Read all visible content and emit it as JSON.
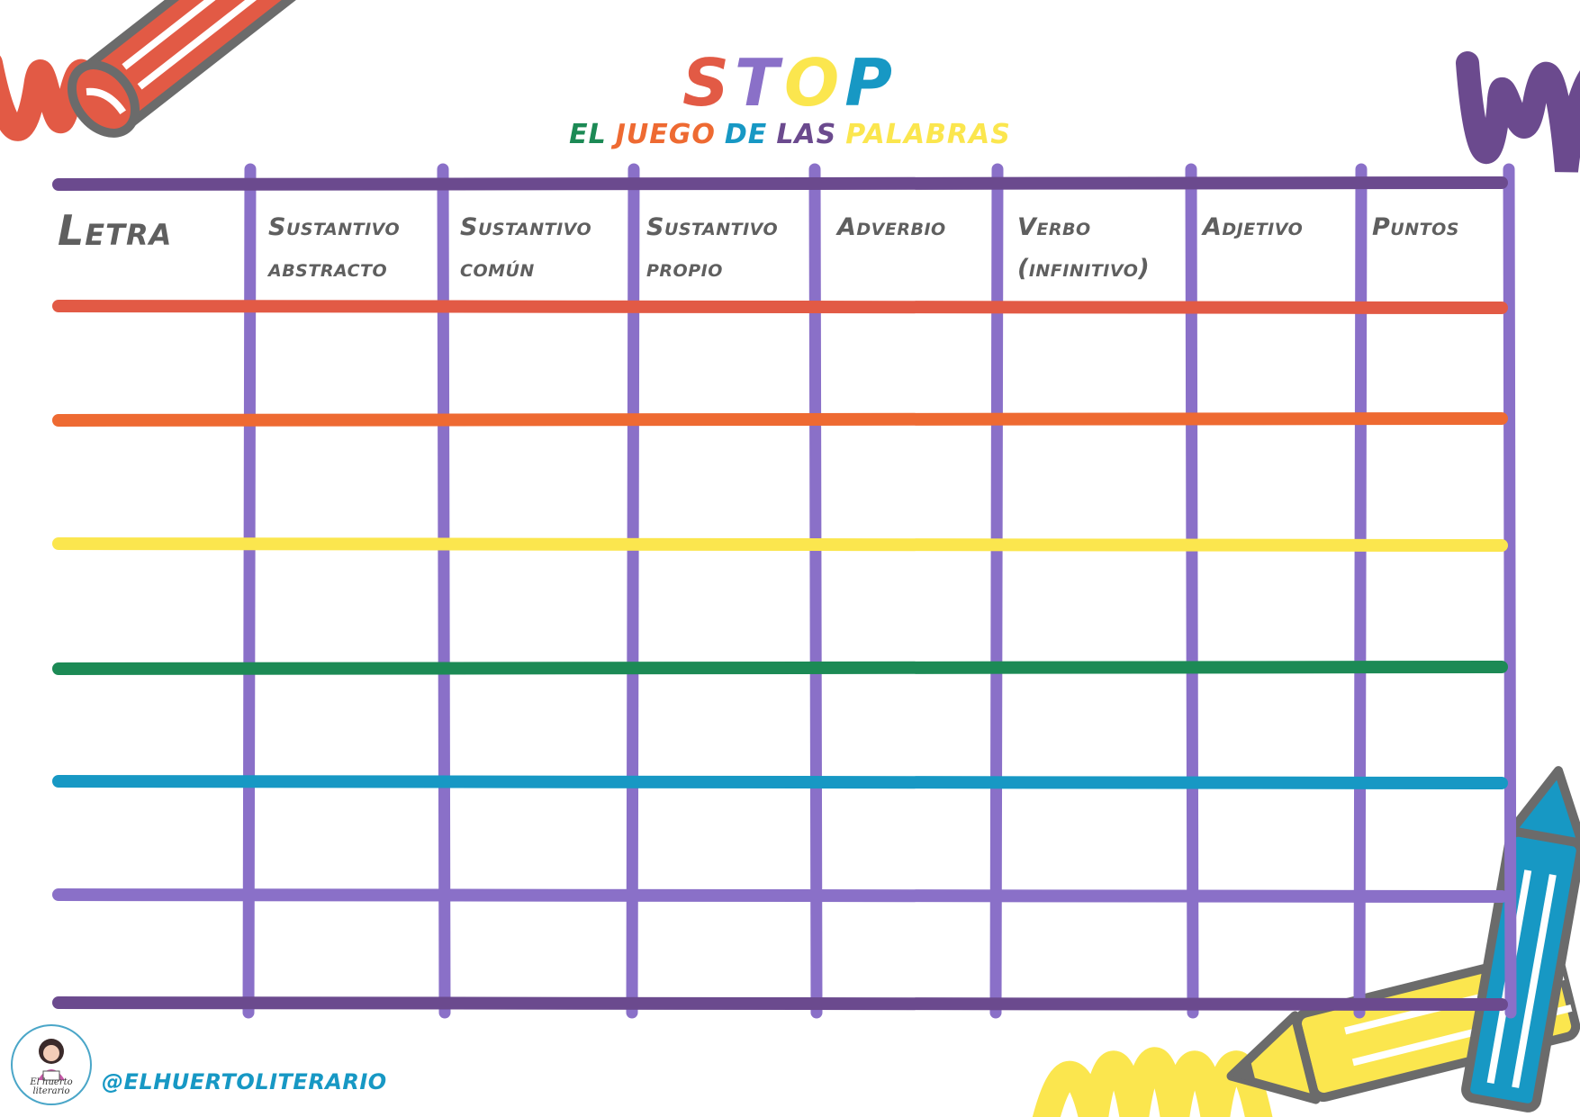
{
  "title": {
    "letters": [
      "S",
      "T",
      "O",
      "P"
    ]
  },
  "subtitle": {
    "words": [
      "EL",
      "JUEGO",
      "DE",
      "LAS",
      "PALABRAS"
    ]
  },
  "table": {
    "headers": [
      [
        "Letra"
      ],
      [
        "Sustantivo",
        "abstracto"
      ],
      [
        "Sustantivo",
        "común"
      ],
      [
        "Sustantivo",
        "propio"
      ],
      [
        "Adverbio"
      ],
      [
        "Verbo",
        "(infinitivo)"
      ],
      [
        "Adjetivo"
      ],
      [
        "Puntos"
      ]
    ],
    "empty_rows": 6
  },
  "footer": {
    "handle": "@ELHUERTOLITERARIO",
    "logo_text": [
      "El huerto",
      "literario"
    ]
  },
  "colors": {
    "red": "#e25a45",
    "orange": "#ee6a32",
    "yellow": "#fbe64e",
    "green": "#1c8a55",
    "blue": "#1798c4",
    "purple_light": "#8a70c8",
    "purple_dark": "#6b4a8e",
    "gray": "#6b6b6b"
  },
  "icons": [
    "red-crayon-icon",
    "blue-crayon-icon",
    "yellow-crayon-icon",
    "avatar-logo-icon"
  ]
}
